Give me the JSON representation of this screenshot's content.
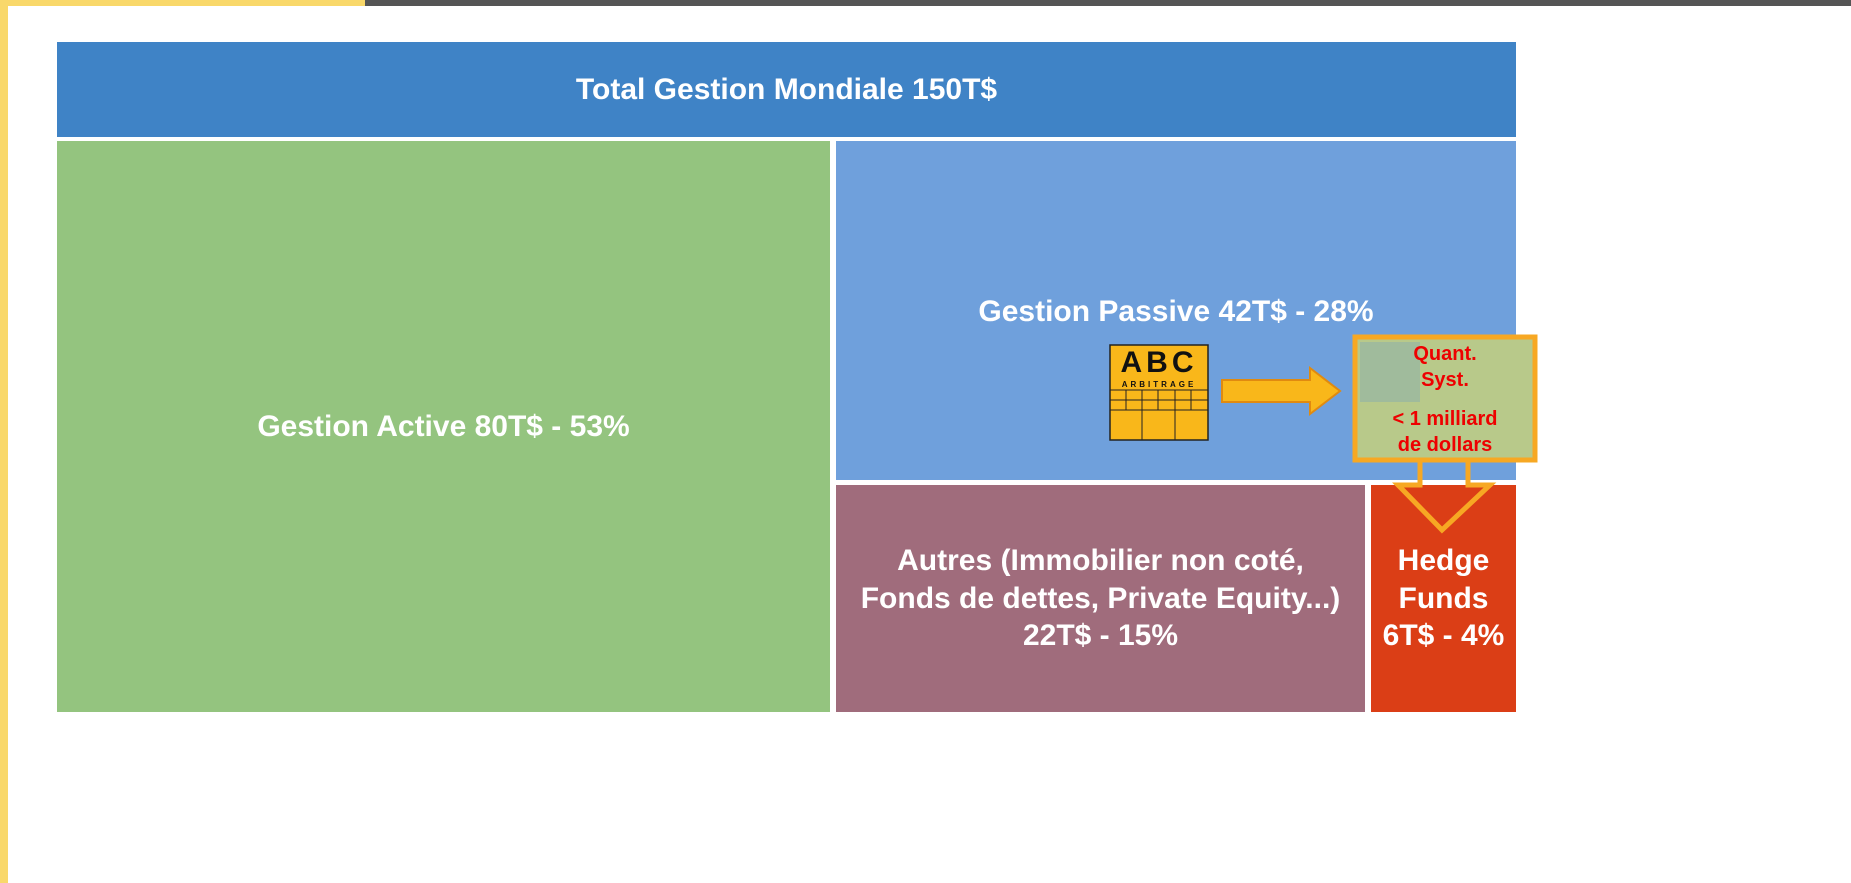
{
  "header": {
    "title": "Total Gestion Mondiale 150T$"
  },
  "blocks": [
    {
      "label": "Gestion Active 80T$ - 53%"
    },
    {
      "label": "Gestion Passive 42T$ - 28%"
    },
    {
      "label": "Autres (Immobilier non coté, Fonds de dettes, Private Equity...) 22T$ - 15%"
    },
    {
      "label": "Hedge Funds 6T$ - 4%"
    }
  ],
  "logo": {
    "letters": "ABC",
    "subtitle": "ARBITRAGE"
  },
  "callout": {
    "lines": [
      "Quant.",
      "Syst.",
      "< 1 milliard",
      "de dollars"
    ]
  }
}
